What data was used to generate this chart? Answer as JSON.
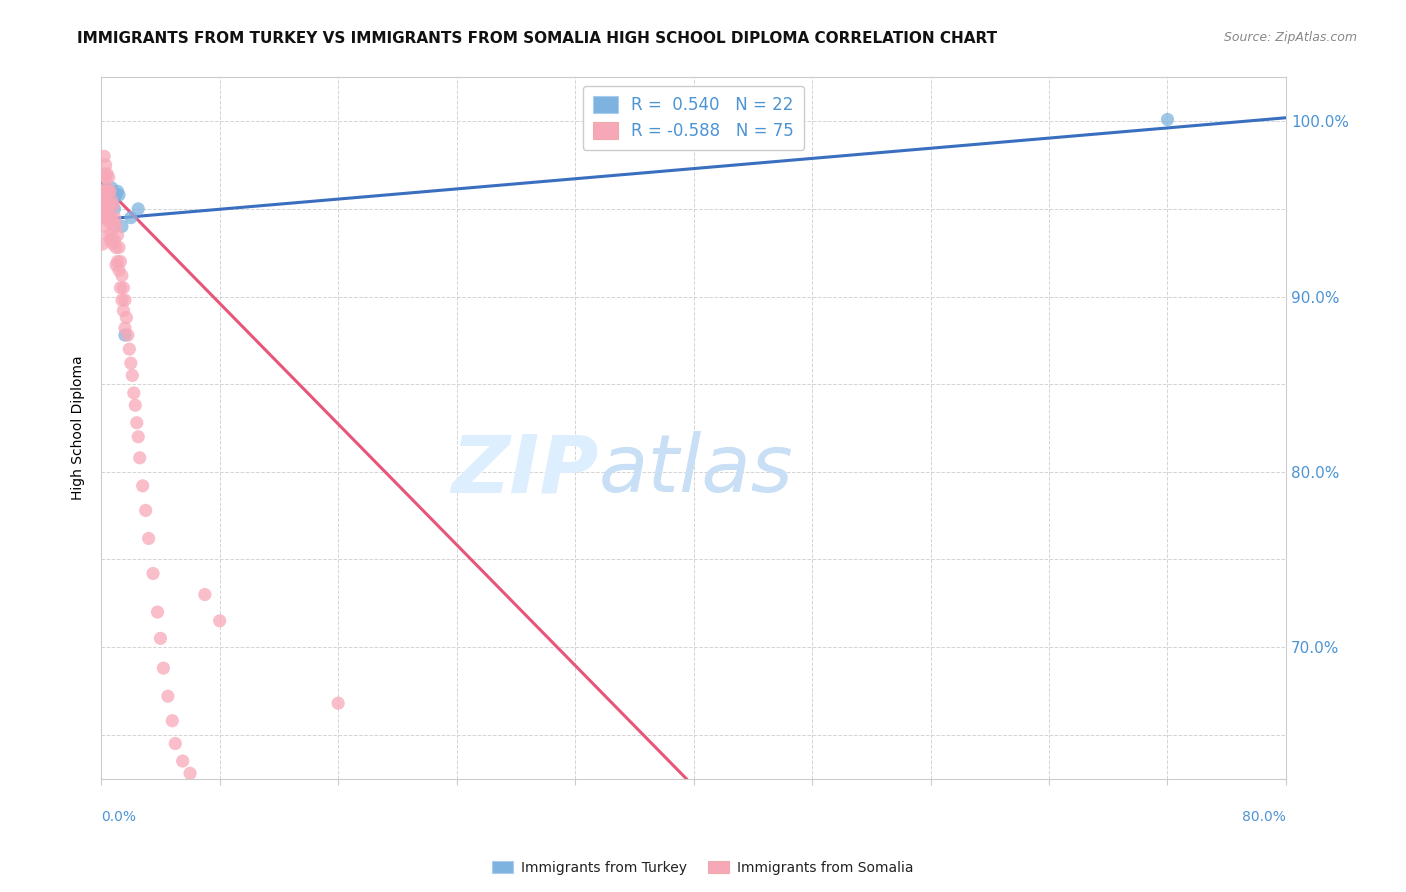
{
  "title": "IMMIGRANTS FROM TURKEY VS IMMIGRANTS FROM SOMALIA HIGH SCHOOL DIPLOMA CORRELATION CHART",
  "source": "Source: ZipAtlas.com",
  "ylabel": "High School Diploma",
  "xlim": [
    0.0,
    0.8
  ],
  "ylim": [
    0.625,
    1.025
  ],
  "yticks": [
    0.65,
    0.7,
    0.75,
    0.8,
    0.85,
    0.9,
    0.95,
    1.0
  ],
  "ytick_labels_right": [
    "",
    "70.0%",
    "",
    "80.0%",
    "",
    "90.0%",
    "",
    "100.0%"
  ],
  "turkey_color": "#7eb3e0",
  "somalia_color": "#f7a8b8",
  "turkey_line_color": "#3a6fbf",
  "somalia_line_color": "#e8557a",
  "grid_color": "#d0d0d0",
  "background_color": "#ffffff",
  "watermark_zip": "ZIP",
  "watermark_atlas": "atlas",
  "watermark_color": "#ddeeff",
  "title_fontsize": 11,
  "source_fontsize": 9,
  "axis_label_color": "#4d94d4",
  "legend_r_turkey": "R =  0.540",
  "legend_n_turkey": "N = 22",
  "legend_r_somalia": "R = -0.588",
  "legend_n_somalia": "N = 75",
  "turkey_line_x": [
    0.0,
    0.8
  ],
  "turkey_line_y": [
    0.944,
    1.002
  ],
  "somalia_line_x": [
    0.0,
    0.395
  ],
  "somalia_line_y": [
    0.965,
    0.625
  ],
  "turkey_x": [
    0.001,
    0.002,
    0.003,
    0.003,
    0.004,
    0.004,
    0.005,
    0.005,
    0.006,
    0.006,
    0.007,
    0.007,
    0.008,
    0.009,
    0.01,
    0.011,
    0.012,
    0.014,
    0.016,
    0.02,
    0.025,
    0.72
  ],
  "turkey_y": [
    0.96,
    0.958,
    0.962,
    0.955,
    0.958,
    0.952,
    0.96,
    0.955,
    0.958,
    0.95,
    0.962,
    0.956,
    0.955,
    0.95,
    0.958,
    0.96,
    0.958,
    0.94,
    0.878,
    0.945,
    0.95,
    1.001
  ],
  "somalia_x": [
    0.001,
    0.001,
    0.001,
    0.001,
    0.002,
    0.002,
    0.002,
    0.002,
    0.002,
    0.003,
    0.003,
    0.003,
    0.003,
    0.003,
    0.004,
    0.004,
    0.004,
    0.004,
    0.005,
    0.005,
    0.005,
    0.005,
    0.005,
    0.006,
    0.006,
    0.006,
    0.006,
    0.007,
    0.007,
    0.007,
    0.008,
    0.008,
    0.008,
    0.009,
    0.009,
    0.01,
    0.01,
    0.01,
    0.011,
    0.011,
    0.012,
    0.012,
    0.013,
    0.013,
    0.014,
    0.014,
    0.015,
    0.015,
    0.016,
    0.016,
    0.017,
    0.018,
    0.019,
    0.02,
    0.021,
    0.022,
    0.023,
    0.024,
    0.025,
    0.026,
    0.028,
    0.03,
    0.032,
    0.035,
    0.038,
    0.04,
    0.042,
    0.045,
    0.048,
    0.05,
    0.055,
    0.06,
    0.07,
    0.08,
    0.16
  ],
  "somalia_y": [
    0.96,
    0.955,
    0.945,
    0.93,
    0.98,
    0.97,
    0.96,
    0.95,
    0.94,
    0.975,
    0.968,
    0.96,
    0.952,
    0.945,
    0.97,
    0.962,
    0.955,
    0.945,
    0.968,
    0.96,
    0.952,
    0.945,
    0.935,
    0.96,
    0.952,
    0.942,
    0.932,
    0.955,
    0.945,
    0.935,
    0.952,
    0.942,
    0.93,
    0.945,
    0.932,
    0.94,
    0.928,
    0.918,
    0.935,
    0.92,
    0.928,
    0.915,
    0.92,
    0.905,
    0.912,
    0.898,
    0.905,
    0.892,
    0.898,
    0.882,
    0.888,
    0.878,
    0.87,
    0.862,
    0.855,
    0.845,
    0.838,
    0.828,
    0.82,
    0.808,
    0.792,
    0.778,
    0.762,
    0.742,
    0.72,
    0.705,
    0.688,
    0.672,
    0.658,
    0.645,
    0.635,
    0.628,
    0.73,
    0.715,
    0.668
  ]
}
